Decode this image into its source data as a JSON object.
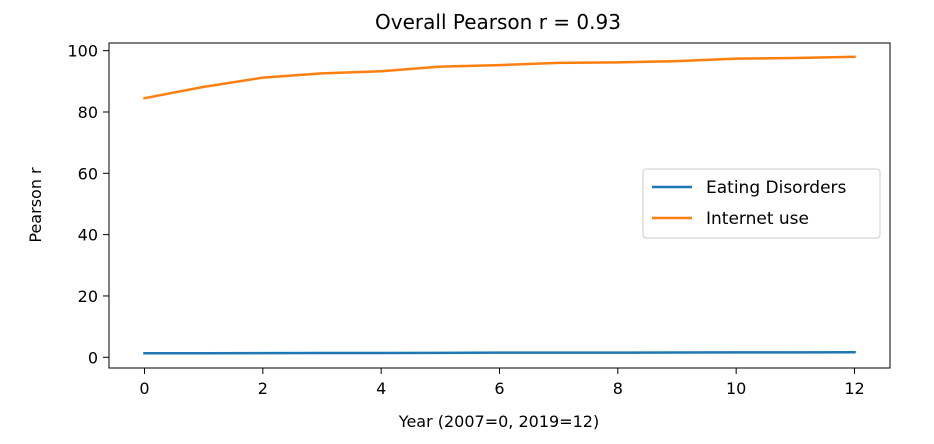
{
  "chart_data": {
    "type": "line",
    "title": "Overall Pearson r = 0.93",
    "xlabel": "Year (2007=0, 2019=12)",
    "ylabel": "Pearson r",
    "x": [
      0,
      1,
      2,
      3,
      4,
      5,
      6,
      7,
      8,
      9,
      10,
      11,
      12
    ],
    "xlim": [
      -0.6,
      12.6
    ],
    "ylim": [
      -3.5,
      102.5
    ],
    "xticks": [
      0,
      2,
      4,
      6,
      8,
      10,
      12
    ],
    "yticks": [
      0,
      20,
      40,
      60,
      80,
      100
    ],
    "grid": false,
    "legend_position": "center-right",
    "series": [
      {
        "name": "Eating Disorders",
        "color": "#1f77b4",
        "values": [
          1.3,
          1.3,
          1.35,
          1.4,
          1.4,
          1.45,
          1.5,
          1.5,
          1.5,
          1.55,
          1.6,
          1.6,
          1.65
        ]
      },
      {
        "name": "Internet use",
        "color": "#ff7f0e",
        "values": [
          84.5,
          88.2,
          91.2,
          92.6,
          93.3,
          94.8,
          95.3,
          96.0,
          96.2,
          96.6,
          97.4,
          97.6,
          98.0
        ]
      }
    ]
  }
}
